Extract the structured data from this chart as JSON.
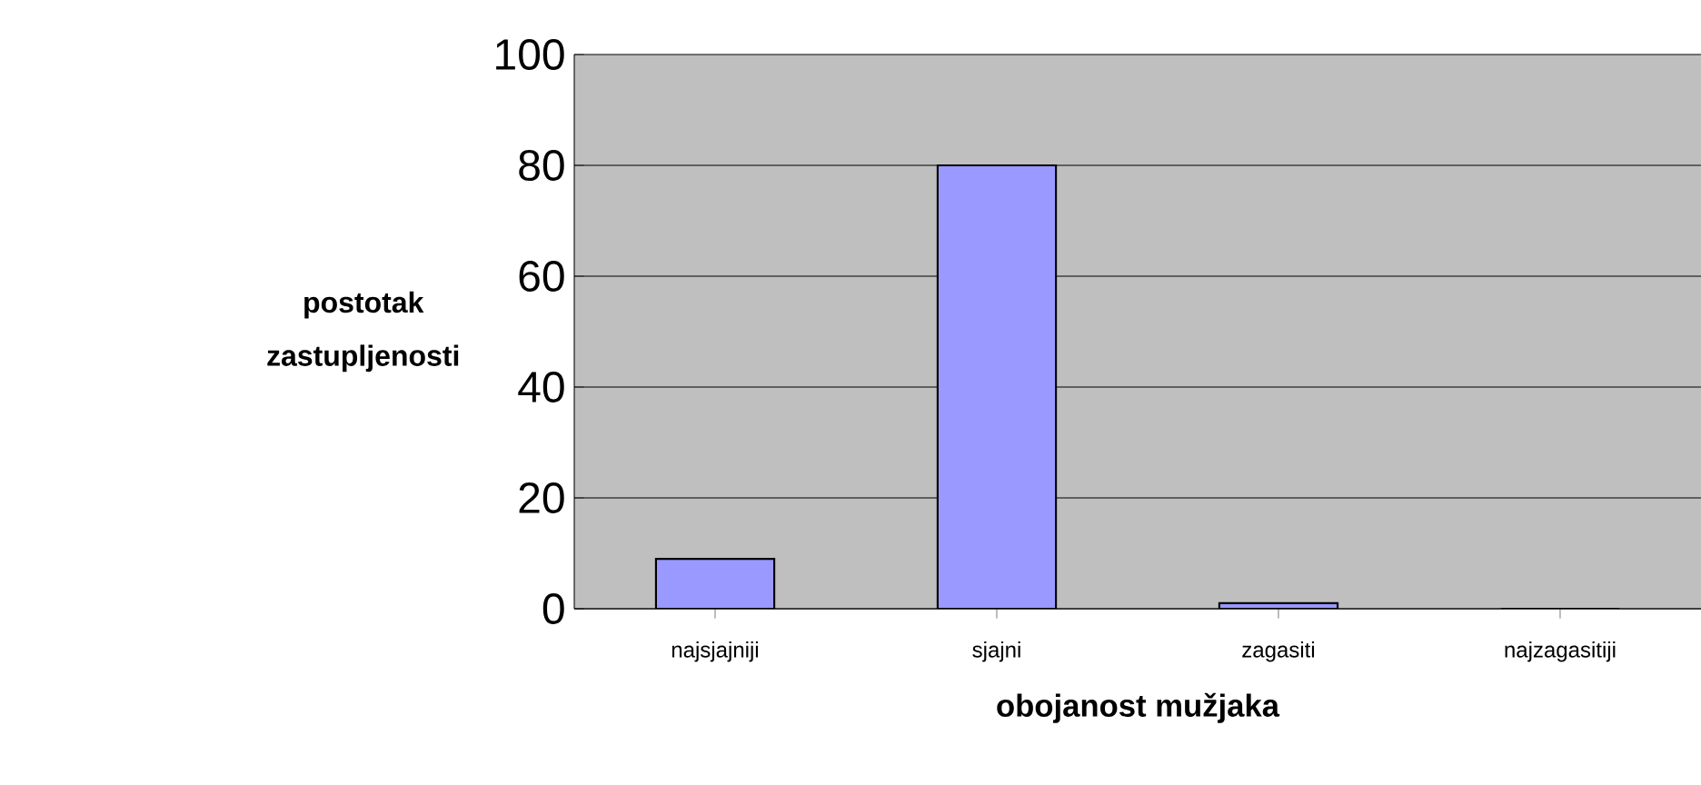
{
  "chart_data": {
    "type": "bar",
    "xlabel": "obojanost mužjaka",
    "ylabel": "postotak zastupljenosti",
    "categories": [
      "najsjajniji",
      "sjajni",
      "zagasiti",
      "najzagasitiji"
    ],
    "values": [
      9,
      80,
      1,
      0
    ],
    "color": "#9999ff",
    "ylim": [
      0,
      100
    ],
    "yticks": [
      0,
      20,
      40,
      60,
      80,
      100
    ],
    "grid": "y"
  }
}
